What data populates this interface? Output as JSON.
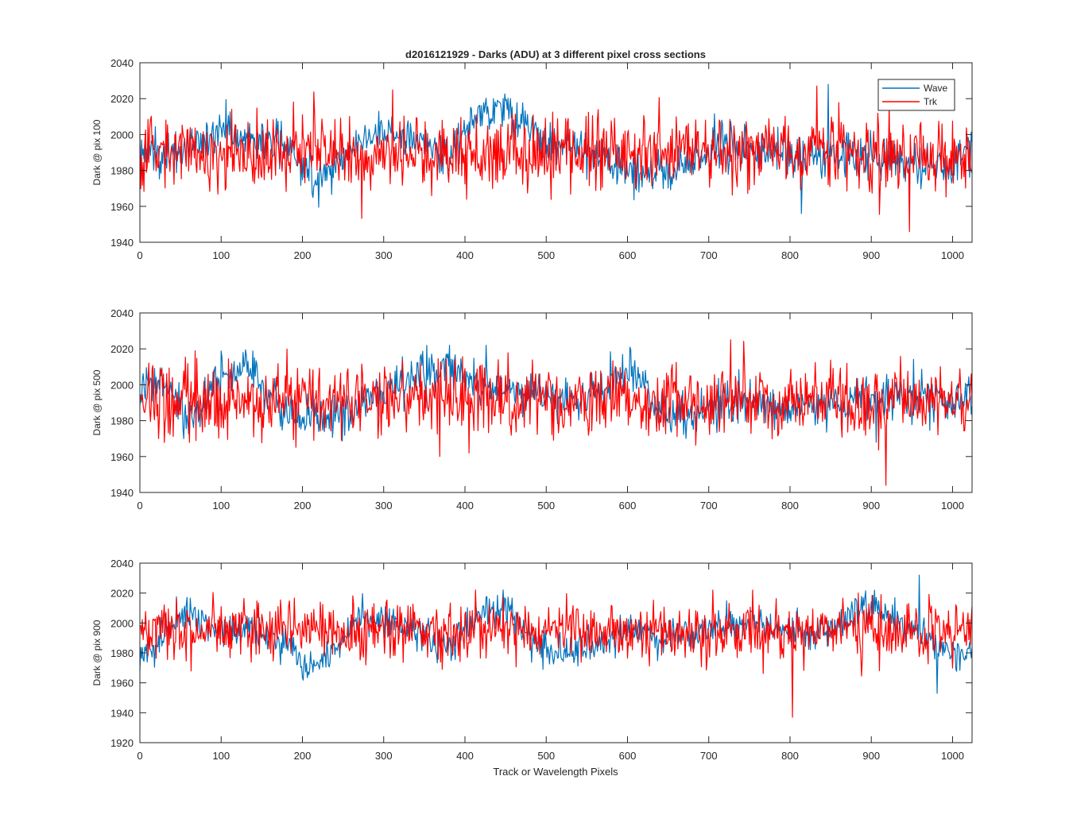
{
  "figure": {
    "title": "d2016121929 - Darks (ADU) at 3 different pixel cross sections",
    "xlabel": "Track or Wavelength Pixels"
  },
  "colors": {
    "Wave": "#0072bd",
    "Trk": "#ff0000",
    "axis": "#262626"
  },
  "chart_data": [
    {
      "type": "line",
      "title": "d2016121929 - Darks (ADU) at 3 different pixel cross sections",
      "ylabel": "Dark @ pix 100",
      "xlabel": "",
      "xlim": [
        0,
        1024
      ],
      "ylim": [
        1940,
        2040
      ],
      "xticks": [
        0,
        100,
        200,
        300,
        400,
        500,
        600,
        700,
        800,
        900,
        1000
      ],
      "yticks": [
        1940,
        1960,
        1980,
        2000,
        2020,
        2040
      ],
      "legend": {
        "placement": "top-right",
        "entries": [
          "Wave",
          "Trk"
        ]
      },
      "grid": false,
      "series": [
        {
          "name": "Wave",
          "color": "#0072bd",
          "mean": 1992,
          "noise": 6,
          "x": [
            0,
            30,
            60,
            100,
            140,
            180,
            220,
            260,
            300,
            340,
            380,
            410,
            440,
            470,
            500,
            530,
            560,
            600,
            640,
            680,
            720,
            760,
            800,
            840,
            880,
            920,
            960,
            1000,
            1024
          ],
          "y": [
            1990,
            1988,
            1992,
            2002,
            1998,
            1994,
            1975,
            1992,
            2003,
            1997,
            1988,
            2010,
            2016,
            2008,
            1995,
            1993,
            1988,
            1980,
            1978,
            1985,
            1996,
            1992,
            1988,
            1987,
            1990,
            1986,
            1984,
            1980,
            1998
          ],
          "range": [
            1956,
            2028
          ]
        },
        {
          "name": "Trk",
          "color": "#ff0000",
          "mean": 1990,
          "noise": 10,
          "x": [
            0,
            1024
          ],
          "y": [
            1990,
            1990
          ],
          "range": [
            1946,
            2027
          ]
        }
      ]
    },
    {
      "type": "line",
      "ylabel": "Dark @ pix 500",
      "xlabel": "",
      "xlim": [
        0,
        1024
      ],
      "ylim": [
        1940,
        2040
      ],
      "xticks": [
        0,
        100,
        200,
        300,
        400,
        500,
        600,
        700,
        800,
        900,
        1000
      ],
      "yticks": [
        1940,
        1960,
        1980,
        2000,
        2020,
        2040
      ],
      "grid": false,
      "series": [
        {
          "name": "Wave",
          "color": "#0072bd",
          "mean": 1990,
          "noise": 6,
          "x": [
            0,
            30,
            60,
            100,
            140,
            180,
            220,
            260,
            300,
            340,
            380,
            420,
            460,
            500,
            540,
            580,
            610,
            640,
            680,
            720,
            760,
            800,
            840,
            880,
            920,
            960,
            1000,
            1024
          ],
          "y": [
            1995,
            2002,
            1978,
            2003,
            2005,
            1985,
            1982,
            1984,
            1995,
            2004,
            2012,
            2001,
            1996,
            1995,
            1990,
            2003,
            2008,
            1985,
            1980,
            1992,
            1990,
            1986,
            1988,
            1990,
            1993,
            1995,
            1990,
            1992
          ],
          "range": [
            1968,
            2022
          ]
        },
        {
          "name": "Trk",
          "color": "#ff0000",
          "mean": 1990,
          "noise": 10,
          "x": [
            0,
            1024
          ],
          "y": [
            1991,
            1991
          ],
          "range": [
            1944,
            2025
          ]
        }
      ]
    },
    {
      "type": "line",
      "ylabel": "Dark @ pix 900",
      "xlabel": "Track or Wavelength Pixels",
      "xlim": [
        0,
        1024
      ],
      "ylim": [
        1920,
        2040
      ],
      "xticks": [
        0,
        100,
        200,
        300,
        400,
        500,
        600,
        700,
        800,
        900,
        1000
      ],
      "yticks": [
        1920,
        1940,
        1960,
        1980,
        2000,
        2020,
        2040
      ],
      "grid": false,
      "series": [
        {
          "name": "Wave",
          "color": "#0072bd",
          "mean": 1992,
          "noise": 6,
          "x": [
            0,
            20,
            50,
            100,
            150,
            180,
            200,
            230,
            270,
            300,
            340,
            380,
            420,
            450,
            480,
            520,
            560,
            600,
            650,
            700,
            760,
            800,
            850,
            900,
            940,
            980,
            1024
          ],
          "y": [
            1978,
            1985,
            2008,
            1995,
            1993,
            1985,
            1970,
            1975,
            2005,
            2002,
            1995,
            1985,
            2005,
            2012,
            1990,
            1978,
            1985,
            1995,
            1992,
            1995,
            2000,
            1993,
            1995,
            2010,
            2000,
            1985,
            1978
          ],
          "range": [
            1953,
            2032
          ]
        },
        {
          "name": "Trk",
          "color": "#ff0000",
          "mean": 1995,
          "noise": 10,
          "x": [
            0,
            1024
          ],
          "y": [
            1995,
            1995
          ],
          "range": [
            1937,
            2022
          ]
        }
      ]
    }
  ]
}
